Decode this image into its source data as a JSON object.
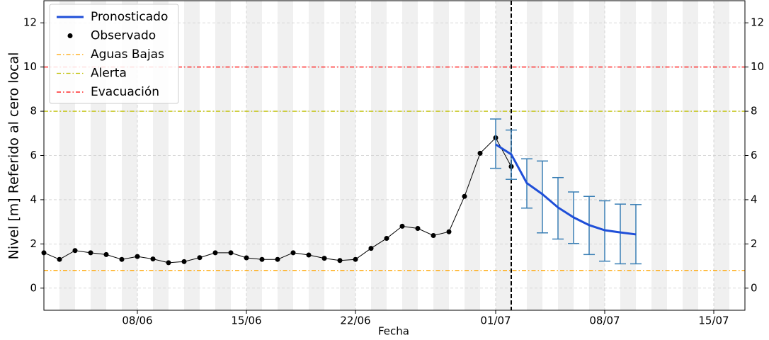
{
  "chart_data": {
    "type": "line",
    "xlabel": "Fecha",
    "ylabel": "Nivel [m] Referido al cero local",
    "xlim": [
      "02/06",
      "17/07"
    ],
    "xticks": [
      "08/06",
      "15/06",
      "22/06",
      "01/07",
      "08/07",
      "15/07"
    ],
    "ylim": [
      -1,
      13
    ],
    "yticks": [
      0,
      2,
      4,
      6,
      8,
      10,
      12
    ],
    "y2lim": [
      -1,
      13
    ],
    "y2ticks": [
      0,
      2,
      4,
      6,
      8,
      10,
      12
    ],
    "grid": true,
    "legend": "upper left",
    "forecast_start": "02/07",
    "observed": {
      "name": "Observado",
      "color": "#000000",
      "x": [
        "02/06",
        "03/06",
        "04/06",
        "05/06",
        "06/06",
        "07/06",
        "08/06",
        "09/06",
        "10/06",
        "11/06",
        "12/06",
        "13/06",
        "14/06",
        "15/06",
        "16/06",
        "17/06",
        "18/06",
        "19/06",
        "20/06",
        "21/06",
        "22/06",
        "23/06",
        "24/06",
        "25/06",
        "26/06",
        "27/06",
        "28/06",
        "29/06",
        "30/06",
        "01/07",
        "02/07"
      ],
      "values": [
        1.6,
        1.3,
        1.7,
        1.6,
        1.52,
        1.3,
        1.43,
        1.32,
        1.15,
        1.2,
        1.38,
        1.6,
        1.6,
        1.37,
        1.3,
        1.3,
        1.6,
        1.5,
        1.35,
        1.25,
        1.3,
        1.8,
        2.25,
        2.8,
        2.7,
        2.38,
        2.55,
        4.15,
        6.1,
        6.8,
        5.5
      ]
    },
    "forecast": {
      "name": "Pronosticado",
      "color": "#1f4fd8",
      "x": [
        "01/07",
        "02/07",
        "03/07",
        "04/07",
        "05/07",
        "06/07",
        "07/07",
        "08/07",
        "09/07",
        "10/07"
      ],
      "values": [
        6.5,
        6.05,
        4.75,
        4.25,
        3.65,
        3.2,
        2.85,
        2.62,
        2.52,
        2.43
      ],
      "error_low": [
        5.42,
        4.92,
        3.62,
        2.5,
        2.22,
        2.02,
        1.52,
        1.22,
        1.1,
        1.1
      ],
      "error_high": [
        7.65,
        7.15,
        5.85,
        5.75,
        5.0,
        4.35,
        4.15,
        3.95,
        3.8,
        3.78
      ],
      "error_color": "#3a7fb5"
    },
    "thresholds": [
      {
        "name": "Aguas Bajas",
        "value": 0.8,
        "color": "#ffa500"
      },
      {
        "name": "Alerta",
        "value": 8,
        "color": "#bfbf00"
      },
      {
        "name": "Evacuación",
        "value": 10,
        "color": "#ff0000"
      }
    ]
  }
}
